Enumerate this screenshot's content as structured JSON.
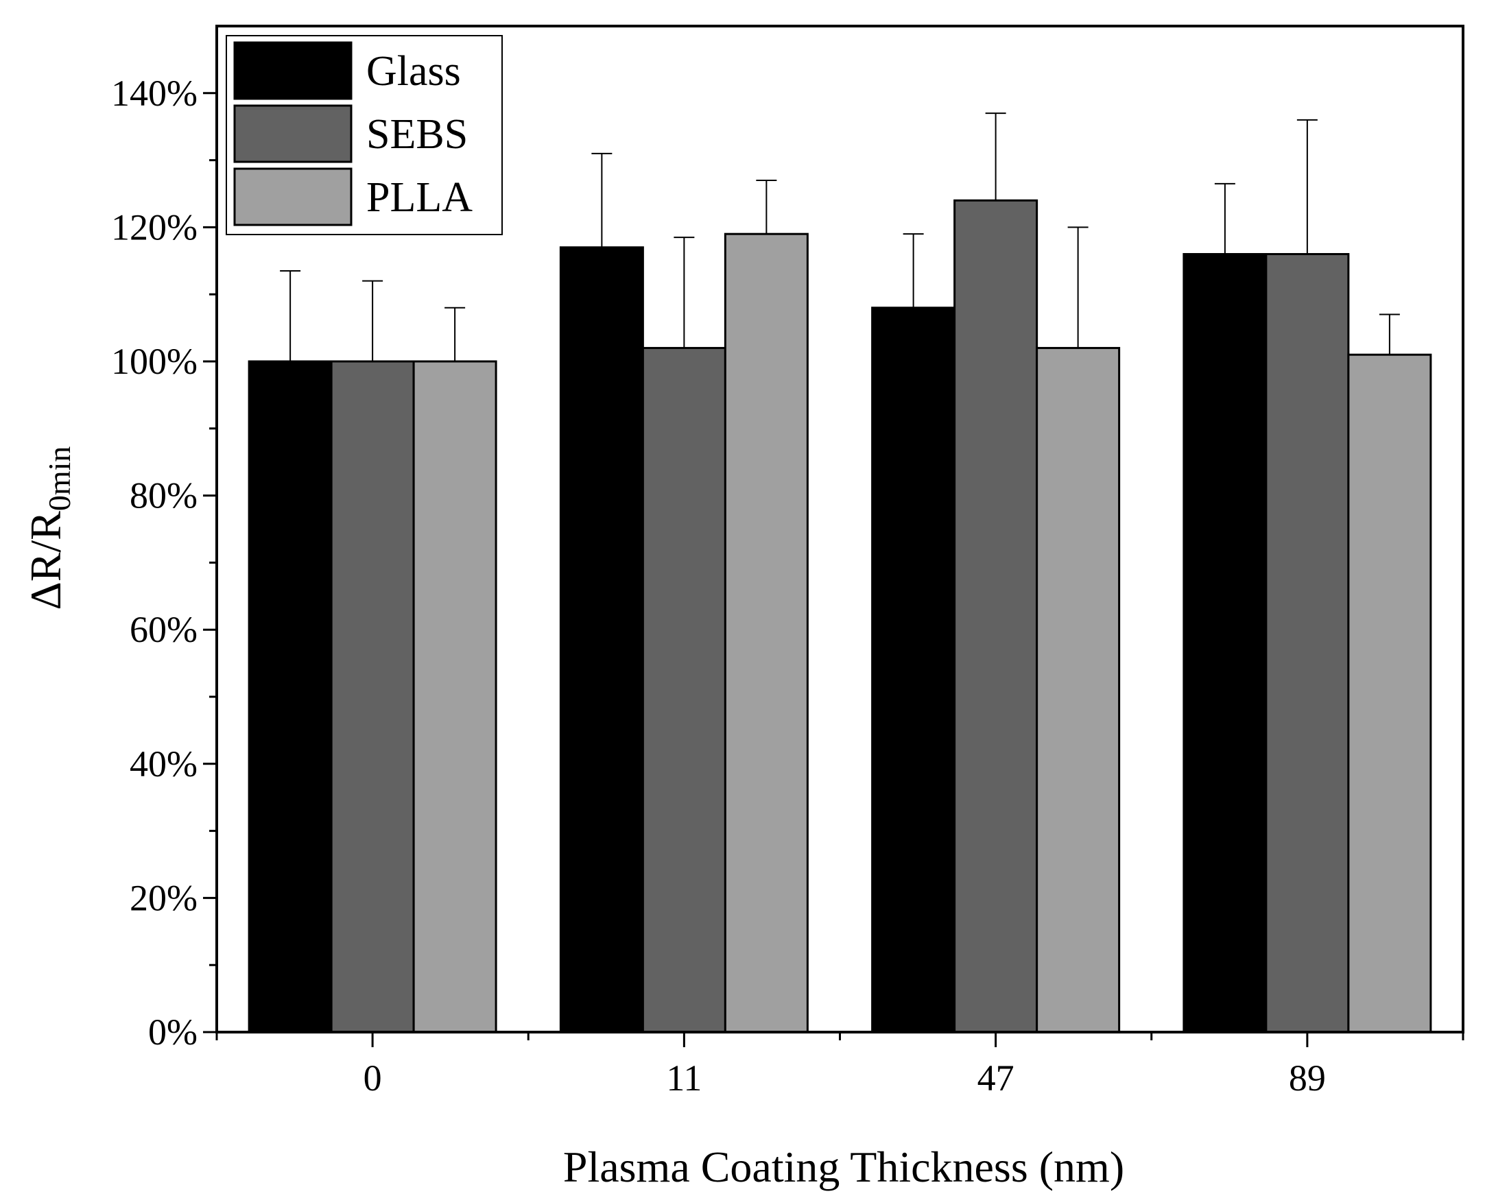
{
  "chart_data": {
    "type": "bar",
    "xlabel": "Plasma Coating Thickness (nm)",
    "ylabel_main": "ΔR/R",
    "ylabel_sub": "0min",
    "categories": [
      "0",
      "11",
      "47",
      "89"
    ],
    "y_tick_labels": [
      "0%",
      "20%",
      "40%",
      "60%",
      "80%",
      "100%",
      "120%",
      "140%"
    ],
    "ylim": [
      0,
      150
    ],
    "legend_position": "top-left",
    "grid": false,
    "series": [
      {
        "name": "Glass",
        "color": "#000000",
        "values": [
          100,
          117,
          108,
          116
        ],
        "errors": [
          13.5,
          14,
          11,
          10.5
        ]
      },
      {
        "name": "SEBS",
        "color": "#626262",
        "values": [
          100,
          102,
          124,
          116
        ],
        "errors": [
          12,
          16.5,
          13,
          20
        ]
      },
      {
        "name": "PLLA",
        "color": "#a0a0a0",
        "values": [
          100,
          119,
          102,
          101
        ],
        "errors": [
          8,
          8,
          18,
          6
        ]
      }
    ]
  }
}
